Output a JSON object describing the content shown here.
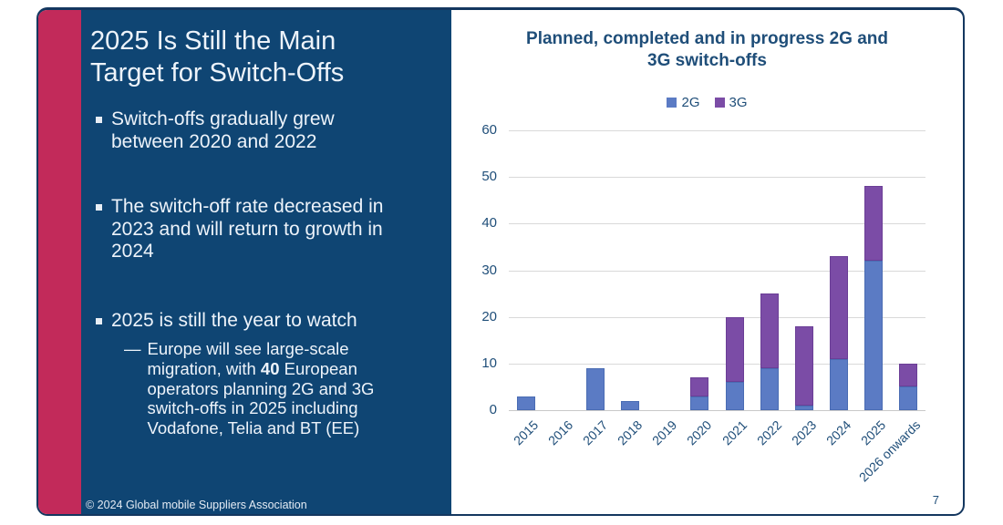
{
  "slide": {
    "page_number": "7",
    "footer": "© 2024 Global mobile Suppliers Association"
  },
  "left_panel": {
    "title": "2025 Is Still the Main Target for Switch-Offs",
    "bullets": [
      {
        "text": "Switch-offs gradually grew between 2020 and 2022"
      },
      {
        "text": "The switch-off rate decreased in 2023 and will return to growth in 2024"
      },
      {
        "text": "2025 is still the year to watch"
      }
    ],
    "sub_bullet": {
      "marker": "—",
      "prefix": "Europe will see large-scale migration, with ",
      "bold": "40",
      "suffix": " European operators planning 2G and 3G switch-offs in 2025 including Vodafone, Telia and BT (EE)"
    },
    "colors": {
      "accent": "#C22A5A",
      "panel": "#0F4573"
    }
  },
  "chart_data": {
    "type": "bar",
    "stacked": true,
    "title": "Planned, completed and in progress 2G and 3G switch-offs",
    "categories": [
      "2015",
      "2016",
      "2017",
      "2018",
      "2019",
      "2020",
      "2021",
      "2022",
      "2023",
      "2024",
      "2025",
      "2026 onwards"
    ],
    "series": [
      {
        "name": "2G",
        "color": "#5B7BC4",
        "edge": "#4A6CB3",
        "values": [
          3,
          0,
          9,
          2,
          0,
          3,
          6,
          9,
          1,
          11,
          32,
          5
        ]
      },
      {
        "name": "3G",
        "color": "#7B4CA6",
        "edge": "#6B3E96",
        "values": [
          0,
          0,
          0,
          0,
          0,
          4,
          14,
          16,
          17,
          22,
          16,
          5
        ]
      }
    ],
    "totals": [
      3,
      0,
      9,
      2,
      0,
      7,
      20,
      25,
      18,
      33,
      48,
      10
    ],
    "ylim": [
      0,
      60
    ],
    "yticks": [
      0,
      10,
      20,
      30,
      40,
      50,
      60
    ],
    "grid": true,
    "legend_position": "top",
    "xlabel_rotation_deg": -45
  }
}
